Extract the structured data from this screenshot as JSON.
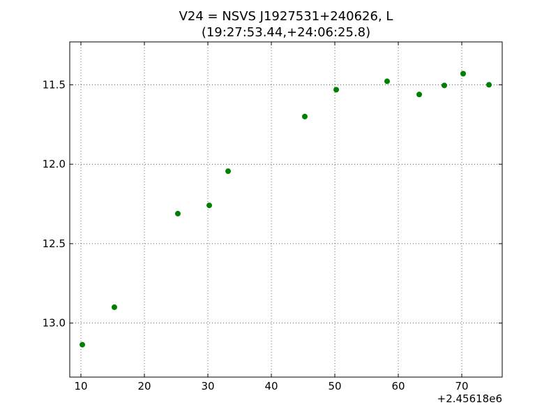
{
  "chart_data": {
    "type": "scatter",
    "title": "V24 = NSVS J1927531+240626, L",
    "subtitle": "(19:27:53.44,+24:06:25.8)",
    "x_offset_label": "+2.45618e6",
    "x": [
      10.22,
      15.27,
      25.27,
      30.22,
      33.19,
      45.27,
      50.22,
      58.24,
      63.3,
      67.25,
      70.22,
      74.29
    ],
    "values": [
      13.136,
      12.9,
      12.311,
      12.259,
      12.044,
      11.7,
      11.531,
      11.478,
      11.561,
      11.504,
      11.43,
      11.5
    ],
    "color": "#008000",
    "xlim": [
      8.24,
      76.37
    ],
    "ylim": [
      11.23,
      13.34
    ],
    "y_inverted": true,
    "xticks": [
      10,
      20,
      30,
      40,
      50,
      60,
      70
    ],
    "yticks": [
      {
        "value": 11.5,
        "label": "11.5"
      },
      {
        "value": 12.0,
        "label": "12.0"
      },
      {
        "value": 12.5,
        "label": "12.5"
      },
      {
        "value": 13.0,
        "label": "13.0"
      }
    ],
    "grid": true
  }
}
